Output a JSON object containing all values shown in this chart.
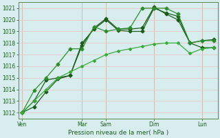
{
  "xlabel": "Pression niveau de la mer( hPa )",
  "bg_color": "#d8eeee",
  "grid_color": "#e8c8c8",
  "ylim": [
    1011.5,
    1021.5
  ],
  "yticks": [
    1012,
    1013,
    1014,
    1015,
    1016,
    1017,
    1018,
    1019,
    1020,
    1021
  ],
  "day_labels": [
    "Ven",
    "",
    "Mar",
    "Sam",
    "",
    "Dim",
    "",
    "Lun"
  ],
  "day_positions": [
    0,
    4,
    5,
    7,
    10,
    11,
    14,
    15
  ],
  "vline_positions": [
    0,
    5,
    7,
    11,
    15
  ],
  "series": [
    [
      1012.0,
      1012.5,
      1013.8,
      1014.9,
      1015.2,
      1018.0,
      1019.2,
      1020.0,
      1019.1,
      1019.0,
      1019.0,
      1021.0,
      1020.6,
      1020.3,
      1018.0,
      1017.6,
      1017.6
    ],
    [
      1012.0,
      1013.0,
      1014.8,
      1015.0,
      1015.2,
      1017.8,
      1019.3,
      1020.1,
      1019.2,
      1019.2,
      1019.3,
      1021.1,
      1020.5,
      1020.0,
      1018.0,
      1018.2,
      1018.3
    ],
    [
      1012.0,
      1013.9,
      1015.0,
      1016.2,
      1017.5,
      1017.5,
      1019.4,
      1019.0,
      1019.2,
      1019.3,
      1021.0,
      1021.0,
      1021.0,
      1020.5,
      1018.0,
      1018.2,
      1018.2
    ],
    [
      1012.0,
      1013.0,
      1014.0,
      1015.0,
      1015.5,
      1016.0,
      1016.5,
      1017.0,
      1017.3,
      1017.5,
      1017.7,
      1017.9,
      1018.0,
      1018.0,
      1017.1,
      1017.5,
      1017.6
    ]
  ],
  "series_styles": [
    {
      "color": "#1a5c1a",
      "lw": 0.9,
      "marker": "D",
      "ms": 2.5,
      "ls": "-"
    },
    {
      "color": "#1a5c1a",
      "lw": 0.9,
      "marker": "D",
      "ms": 2.5,
      "ls": "-"
    },
    {
      "color": "#2d8c2d",
      "lw": 0.9,
      "marker": "D",
      "ms": 2.5,
      "ls": "-"
    },
    {
      "color": "#3aaa3a",
      "lw": 0.9,
      "marker": "D",
      "ms": 2.0,
      "ls": "-"
    }
  ]
}
